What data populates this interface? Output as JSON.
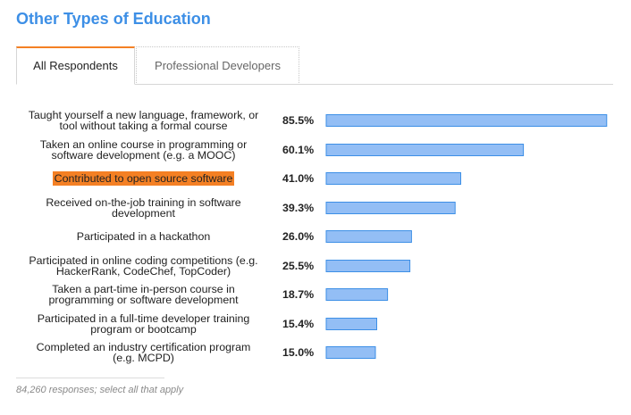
{
  "title": "Other Types of Education",
  "tabs": [
    {
      "label": "All Respondents",
      "active": true
    },
    {
      "label": "Professional Developers",
      "active": false
    }
  ],
  "chart_data": {
    "type": "bar",
    "orientation": "horizontal",
    "categories": [
      "Taught yourself a new language, framework, or tool without taking a formal course",
      "Taken an online course in programming or software development (e.g. a MOOC)",
      "Contributed to open source software",
      "Received on-the-job training in software development",
      "Participated in a hackathon",
      "Participated in online coding competitions (e.g. HackerRank, CodeChef, TopCoder)",
      "Taken a part-time in-person course in programming or software development",
      "Participated in a full-time developer training program or bootcamp",
      "Completed an industry certification program (e.g. MCPD)"
    ],
    "label_lines": [
      [
        "Taught yourself a new language, framework, or",
        "tool without taking a formal course"
      ],
      [
        "Taken an online course in programming or",
        "software development (e.g. a MOOC)"
      ],
      [
        "Contributed to open source software"
      ],
      [
        "Received on-the-job training in software",
        "development"
      ],
      [
        "Participated in a hackathon"
      ],
      [
        "Participated in online coding competitions (e.g.",
        "HackerRank, CodeChef, TopCoder)"
      ],
      [
        "Taken a part-time in-person course in",
        "programming or software development"
      ],
      [
        "Participated in a full-time developer training",
        "program or bootcamp"
      ],
      [
        "Completed an industry certification program",
        "(e.g. MCPD)"
      ]
    ],
    "values": [
      85.5,
      60.1,
      41.0,
      39.3,
      26.0,
      25.5,
      18.7,
      15.4,
      15.0
    ],
    "value_labels": [
      "85.5%",
      "60.1%",
      "41.0%",
      "39.3%",
      "26.0%",
      "25.5%",
      "18.7%",
      "15.4%",
      "15.0%"
    ],
    "highlighted_index": 2,
    "xlim": [
      0,
      100
    ],
    "colors": {
      "bar_fill": "#93bef5",
      "bar_stroke": "#3d8fe6",
      "highlight": "#f48024",
      "title": "#3d8fe6"
    }
  },
  "footnote": "84,260 responses; select all that apply"
}
